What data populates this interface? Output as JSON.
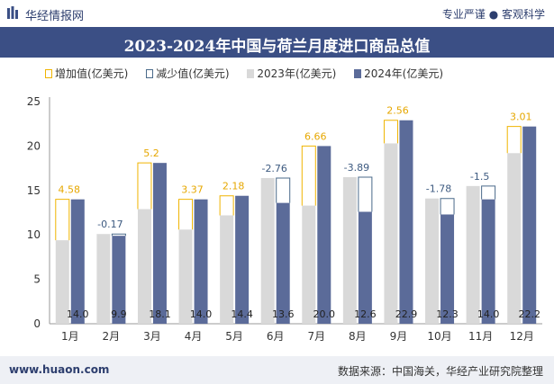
{
  "header": {
    "brand": "华经情报网",
    "tagline": "专业严谨 ● 客观科学"
  },
  "footer": {
    "site": "www.huaon.com",
    "source": "数据来源：中国海关，华经产业研究院整理"
  },
  "colors": {
    "bar2023": "#d9d9d9",
    "bar2024": "#5b6b99",
    "increase": "#f0b400",
    "decrease": "#4a6a8a",
    "titlebar": "#3b4f85"
  },
  "chart_data": {
    "type": "bar",
    "title": "2023-2024年中国与荷兰月度进口商品总值",
    "categories": [
      "1月",
      "2月",
      "3月",
      "4月",
      "5月",
      "6月",
      "7月",
      "8月",
      "9月",
      "10月",
      "11月",
      "12月"
    ],
    "series": [
      {
        "name": "2023年(亿美元)",
        "values": [
          9.4,
          10.1,
          12.9,
          10.6,
          12.2,
          16.4,
          13.3,
          16.5,
          20.3,
          14.1,
          15.5,
          19.2
        ]
      },
      {
        "name": "2024年(亿美元)",
        "values": [
          14.0,
          9.9,
          18.1,
          14.0,
          14.4,
          13.6,
          20.0,
          12.6,
          22.9,
          12.3,
          14.0,
          22.2
        ]
      }
    ],
    "change": {
      "increase_name": "增加值(亿美元)",
      "decrease_name": "减少值(亿美元)",
      "values": [
        4.58,
        -0.17,
        5.2,
        3.37,
        2.18,
        -2.76,
        6.66,
        -3.89,
        2.56,
        -1.78,
        -1.5,
        3.01
      ],
      "labels": [
        "4.58",
        "-0.17",
        "5.2",
        "3.37",
        "2.18",
        "-2.76",
        "6.66",
        "-3.89",
        "2.56",
        "-1.78",
        "-1.5",
        "3.01"
      ]
    },
    "value_labels_2024": [
      "14.0",
      "9.9",
      "18.1",
      "14.0",
      "14.4",
      "13.6",
      "20.0",
      "12.6",
      "22.9",
      "12.3",
      "14.0",
      "22.2"
    ],
    "ylim": [
      0,
      25
    ],
    "yticks": [
      0,
      5,
      10,
      15,
      20,
      25
    ],
    "legend_position": "top",
    "grid": false
  }
}
